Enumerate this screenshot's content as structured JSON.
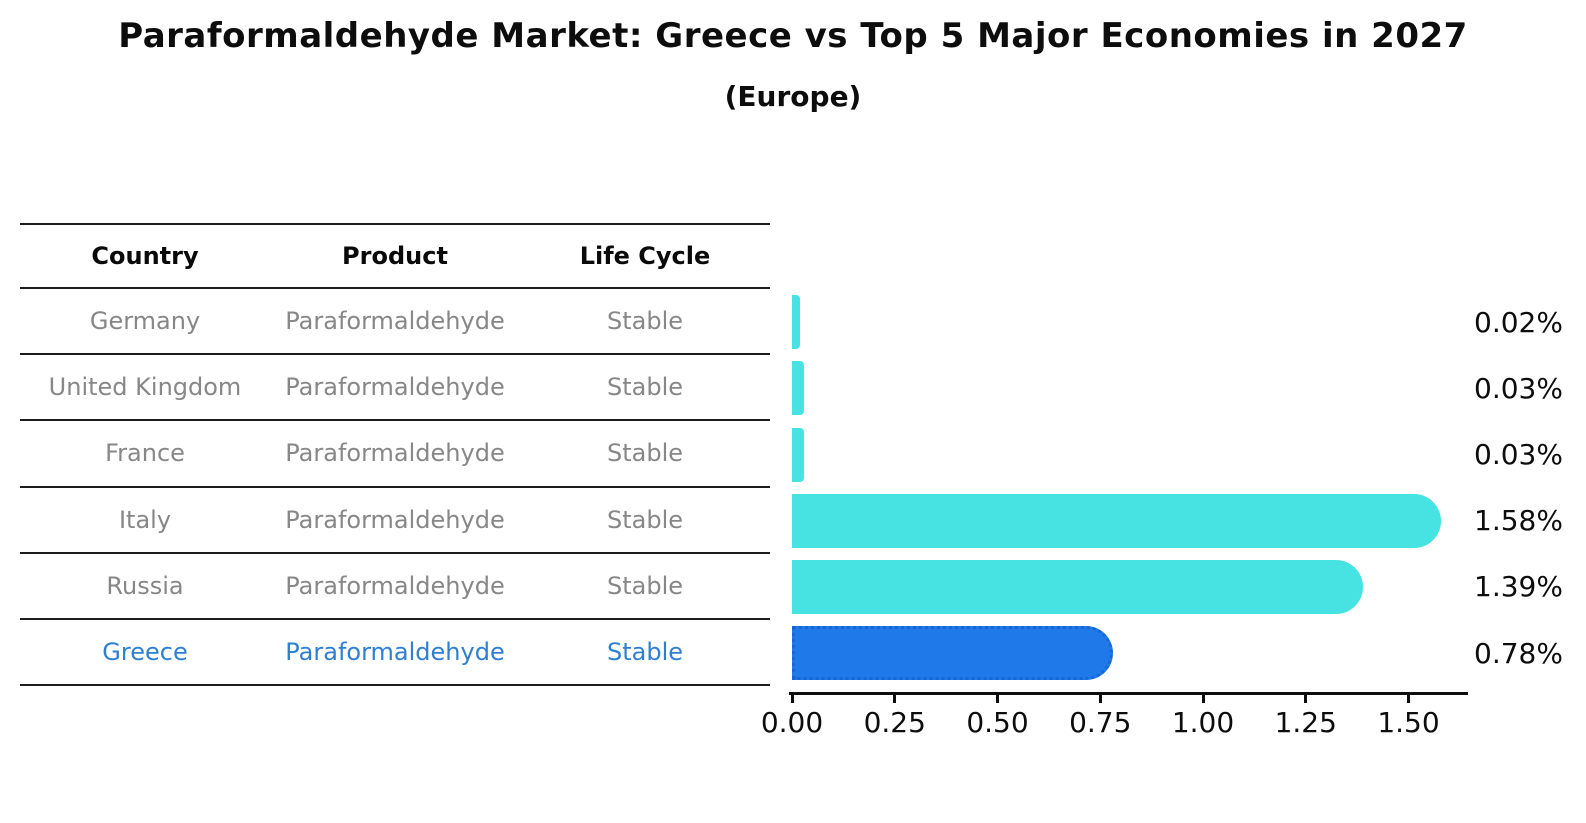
{
  "title": "Paraformaldehyde Market: Greece vs Top 5 Major Economies in 2027",
  "subtitle": "(Europe)",
  "table": {
    "headers": [
      "Country",
      "Product",
      "Life Cycle"
    ],
    "rows": [
      {
        "country": "Germany",
        "product": "Paraformaldehyde",
        "life_cycle": "Stable",
        "highlight": false
      },
      {
        "country": "United Kingdom",
        "product": "Paraformaldehyde",
        "life_cycle": "Stable",
        "highlight": false
      },
      {
        "country": "France",
        "product": "Paraformaldehyde",
        "life_cycle": "Stable",
        "highlight": false
      },
      {
        "country": "Italy",
        "product": "Paraformaldehyde",
        "life_cycle": "Stable",
        "highlight": false
      },
      {
        "country": "Russia",
        "product": "Paraformaldehyde",
        "life_cycle": "Stable",
        "highlight": false
      },
      {
        "country": "Greece",
        "product": "Paraformaldehyde",
        "life_cycle": "Stable",
        "highlight": true
      }
    ]
  },
  "chart_data": {
    "type": "bar",
    "orientation": "horizontal",
    "title": "Paraformaldehyde Market: Greece vs Top 5 Major Economies in 2027",
    "subtitle": "(Europe)",
    "categories": [
      "Germany",
      "United Kingdom",
      "France",
      "Italy",
      "Russia",
      "Greece"
    ],
    "values": [
      0.02,
      0.03,
      0.03,
      1.58,
      1.39,
      0.78
    ],
    "value_labels": [
      "0.02%",
      "0.03%",
      "0.03%",
      "1.58%",
      "1.39%",
      "0.78%"
    ],
    "highlight_index": 5,
    "x_ticks": [
      "0.00",
      "0.25",
      "0.50",
      "0.75",
      "1.00",
      "1.25",
      "1.50"
    ],
    "x_tick_values": [
      0.0,
      0.25,
      0.5,
      0.75,
      1.0,
      1.25,
      1.5
    ],
    "xlim": [
      0,
      1.645
    ],
    "grid": false,
    "legend": false,
    "colors": {
      "bar": "#47e2e2",
      "highlight_bar": "#2079e8",
      "highlight_border": "#1567d3",
      "highlight_text": "#2e7fd1",
      "text": "#0d0d0d",
      "table_text": "#878787"
    }
  }
}
